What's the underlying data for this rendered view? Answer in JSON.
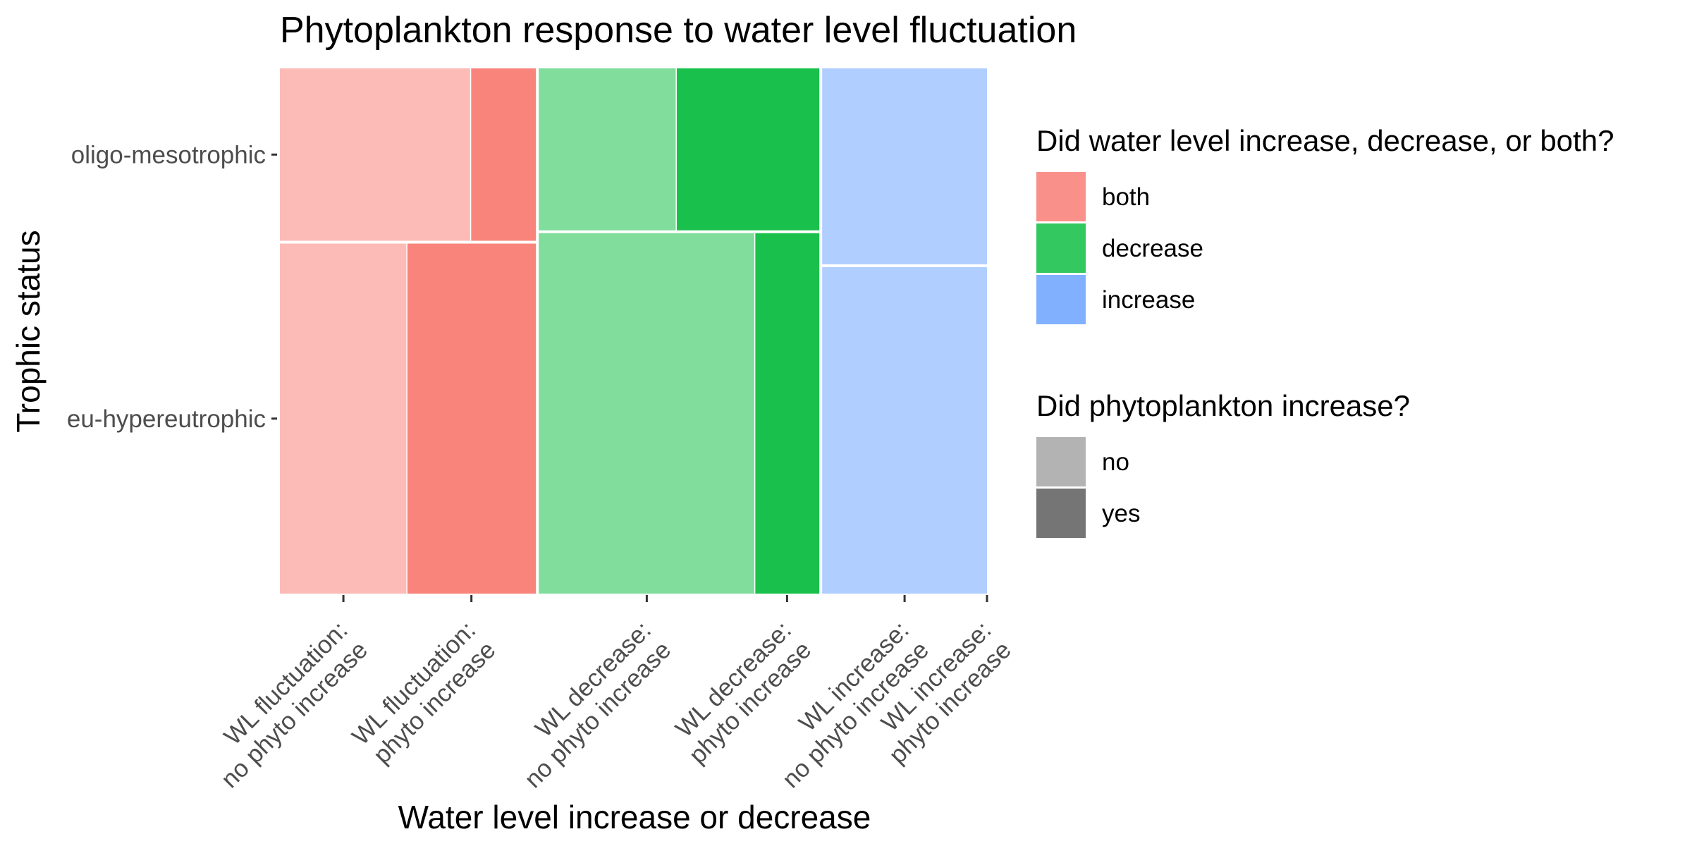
{
  "chart_data": {
    "type": "mosaic",
    "title": "Phytoplankton response to water level fluctuation",
    "xlabel": "Water level increase or decrease",
    "ylabel": "Trophic status",
    "y_categories": [
      "oligo-mesotrophic",
      "eu-hypereutrophic"
    ],
    "x_tick_labels": [
      [
        "WL fluctuation:",
        "no phyto increase"
      ],
      [
        "WL fluctuation:",
        "phyto increase"
      ],
      [
        "WL decrease:",
        "no phyto increase"
      ],
      [
        "WL decrease:",
        "phyto increase"
      ],
      [
        "WL increase:",
        "no phyto increase"
      ],
      [
        "WL increase:",
        "phyto increase"
      ]
    ],
    "groups": [
      {
        "name": "both",
        "width": 0.365,
        "color": "#F8766D",
        "rows": [
          {
            "trophic": "oligo-mesotrophic",
            "fraction": 0.33,
            "no": 0.745,
            "yes": 0.255
          },
          {
            "trophic": "eu-hypereutrophic",
            "fraction": 0.67,
            "no": 0.496,
            "yes": 0.504
          }
        ]
      },
      {
        "name": "decrease",
        "width": 0.4,
        "color": "#00BA38",
        "rows": [
          {
            "trophic": "oligo-mesotrophic",
            "fraction": 0.31,
            "no": 0.49,
            "yes": 0.51
          },
          {
            "trophic": "eu-hypereutrophic",
            "fraction": 0.69,
            "no": 0.77,
            "yes": 0.23
          }
        ]
      },
      {
        "name": "increase",
        "width": 0.235,
        "color": "#619CFF",
        "rows": [
          {
            "trophic": "oligo-mesotrophic",
            "fraction": 0.375,
            "no": 1.0,
            "yes": 0.0
          },
          {
            "trophic": "eu-hypereutrophic",
            "fraction": 0.625,
            "no": 1.0,
            "yes": 0.0
          }
        ]
      }
    ],
    "legend_fill": {
      "title": "Did water level increase, decrease, or both?",
      "items": [
        {
          "label": "both",
          "color": "#F8766D"
        },
        {
          "label": "decrease",
          "color": "#00BA38"
        },
        {
          "label": "increase",
          "color": "#619CFF"
        }
      ]
    },
    "legend_alpha": {
      "title": "Did phytoplankton increase?",
      "items": [
        {
          "label": "no",
          "alpha": 0.5
        },
        {
          "label": "yes",
          "alpha": 0.9
        }
      ]
    },
    "legend_position": "right"
  }
}
